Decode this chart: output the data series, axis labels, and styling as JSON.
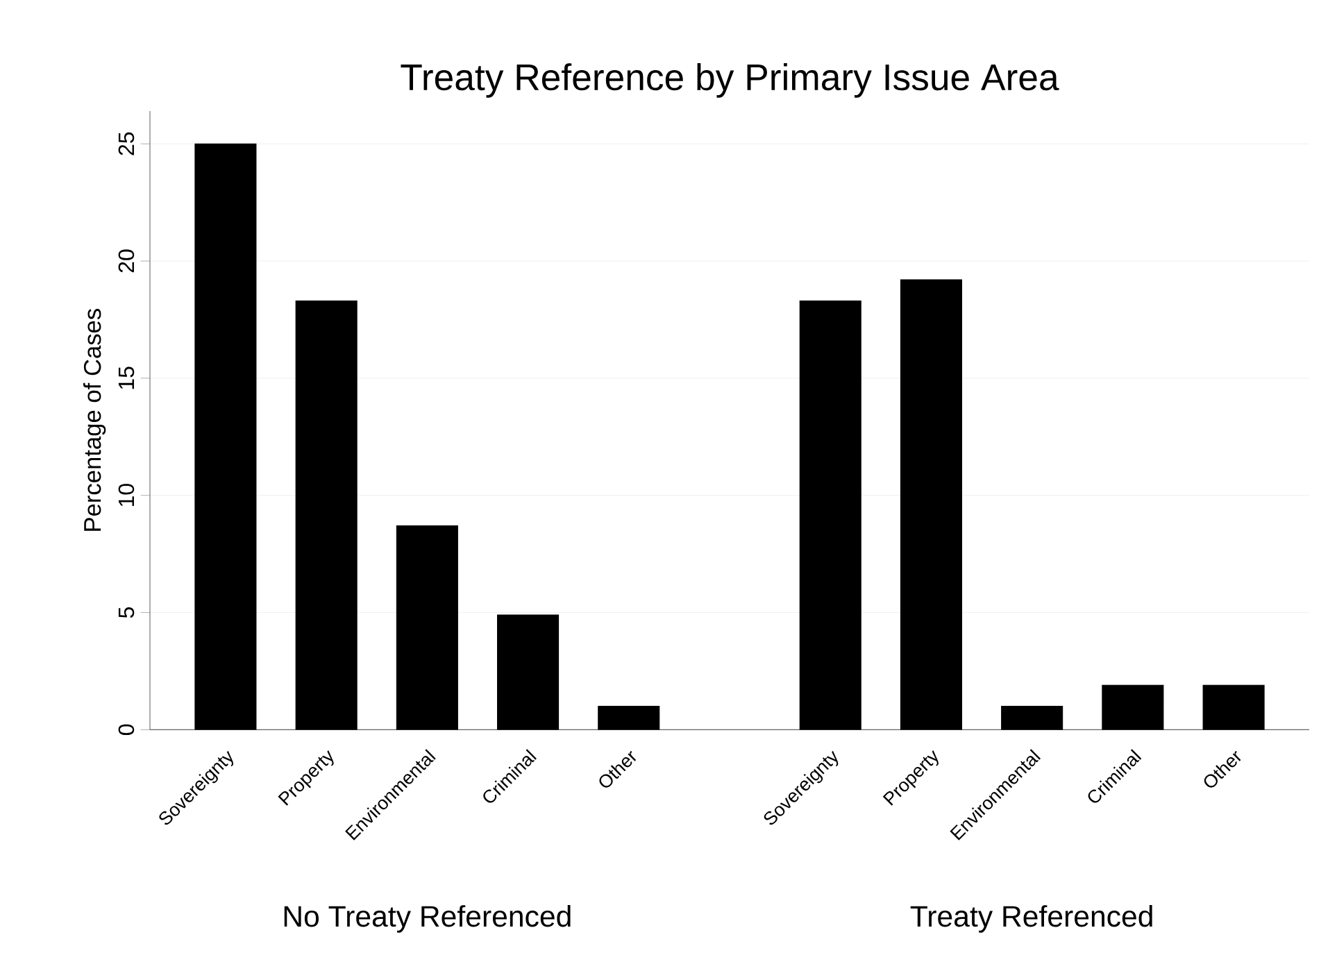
{
  "chart_data": {
    "type": "bar",
    "title": "Treaty Reference by Primary Issue Area",
    "ylabel": "Percentage of Cases",
    "categories": [
      "Sovereignty",
      "Property",
      "Environmental",
      "Criminal",
      "Other",
      null,
      "Sovereignty",
      "Property",
      "Environmental",
      "Criminal",
      "Other"
    ],
    "values": [
      25,
      18.3,
      8.7,
      4.9,
      1.0,
      null,
      18.3,
      19.2,
      1.0,
      1.9,
      1.9
    ],
    "color": "#000000",
    "ylim": [
      0,
      26.4
    ],
    "yticks": [
      0,
      5,
      10,
      15,
      20,
      25
    ],
    "grid": "y",
    "annotations": [
      "No Treaty Referenced",
      "Treaty Referenced"
    ]
  }
}
